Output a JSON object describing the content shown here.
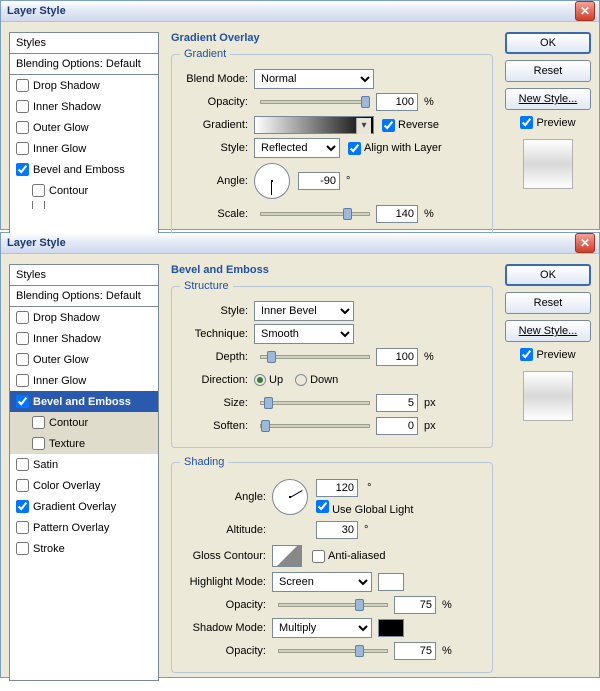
{
  "colors": {
    "accent": "#2050a0",
    "panel_bg": "#ece9d8"
  },
  "top": {
    "title": "Layer Style",
    "styles_header": "Styles",
    "blending": "Blending Options: Default",
    "items": [
      {
        "label": "Drop Shadow",
        "checked": false
      },
      {
        "label": "Inner Shadow",
        "checked": false
      },
      {
        "label": "Outer Glow",
        "checked": false
      },
      {
        "label": "Inner Glow",
        "checked": false
      },
      {
        "label": "Bevel and Emboss",
        "checked": true
      },
      {
        "label": "Contour",
        "checked": false,
        "indent": true
      },
      {
        "label": "Texture",
        "checked": false,
        "indent": true,
        "cut": true
      }
    ],
    "main_title": "Gradient Overlay",
    "group": "Gradient",
    "blend_mode": {
      "label": "Blend Mode:",
      "value": "Normal"
    },
    "opacity": {
      "label": "Opacity:",
      "value": 100,
      "unit": "%",
      "thumb": 100
    },
    "gradient": {
      "label": "Gradient:",
      "reverse_label": "Reverse",
      "reverse": true
    },
    "style": {
      "label": "Style:",
      "value": "Reflected",
      "align_label": "Align with Layer",
      "align": true
    },
    "angle": {
      "label": "Angle:",
      "value": -90,
      "deg": "°",
      "rot": 90
    },
    "scale": {
      "label": "Scale:",
      "value": 140,
      "unit": "%",
      "thumb": 82
    }
  },
  "bottom": {
    "title": "Layer Style",
    "styles_header": "Styles",
    "blending": "Blending Options: Default",
    "items": [
      {
        "label": "Drop Shadow",
        "checked": false
      },
      {
        "label": "Inner Shadow",
        "checked": false
      },
      {
        "label": "Outer Glow",
        "checked": false
      },
      {
        "label": "Inner Glow",
        "checked": false
      },
      {
        "label": "Bevel and Emboss",
        "checked": true,
        "active": true
      },
      {
        "label": "Contour",
        "checked": false,
        "indent": true,
        "on": true
      },
      {
        "label": "Texture",
        "checked": false,
        "indent": true,
        "on": true
      },
      {
        "label": "Satin",
        "checked": false
      },
      {
        "label": "Color Overlay",
        "checked": false
      },
      {
        "label": "Gradient Overlay",
        "checked": true
      },
      {
        "label": "Pattern Overlay",
        "checked": false
      },
      {
        "label": "Stroke",
        "checked": false
      }
    ],
    "main_title": "Bevel and Emboss",
    "structure": {
      "legend": "Structure",
      "style": {
        "label": "Style:",
        "value": "Inner Bevel"
      },
      "technique": {
        "label": "Technique:",
        "value": "Smooth"
      },
      "depth": {
        "label": "Depth:",
        "value": 100,
        "unit": "%",
        "thumb": 6
      },
      "direction": {
        "label": "Direction:",
        "up": "Up",
        "down": "Down",
        "sel": "up"
      },
      "size": {
        "label": "Size:",
        "value": 5,
        "unit": "px",
        "thumb": 3
      },
      "soften": {
        "label": "Soften:",
        "value": 0,
        "unit": "px",
        "thumb": 0
      }
    },
    "shading": {
      "legend": "Shading",
      "angle": {
        "label": "Angle:",
        "value": 120,
        "deg": "°",
        "rot": -30
      },
      "global": {
        "label": "Use Global Light",
        "checked": true
      },
      "altitude": {
        "label": "Altitude:",
        "value": 30,
        "deg": "°"
      },
      "gloss": {
        "label": "Gloss Contour:",
        "anti": "Anti-aliased",
        "anti_checked": false
      },
      "highlight": {
        "label": "Highlight Mode:",
        "value": "Screen",
        "color": "#ffffff"
      },
      "h_opacity": {
        "label": "Opacity:",
        "value": 75,
        "unit": "%",
        "thumb": 70
      },
      "shadow": {
        "label": "Shadow Mode:",
        "value": "Multiply",
        "color": "#000000"
      },
      "s_opacity": {
        "label": "Opacity:",
        "value": 75,
        "unit": "%",
        "thumb": 70
      }
    }
  },
  "buttons": {
    "ok": "OK",
    "reset": "Reset",
    "new_style": "New Style...",
    "preview": "Preview"
  }
}
